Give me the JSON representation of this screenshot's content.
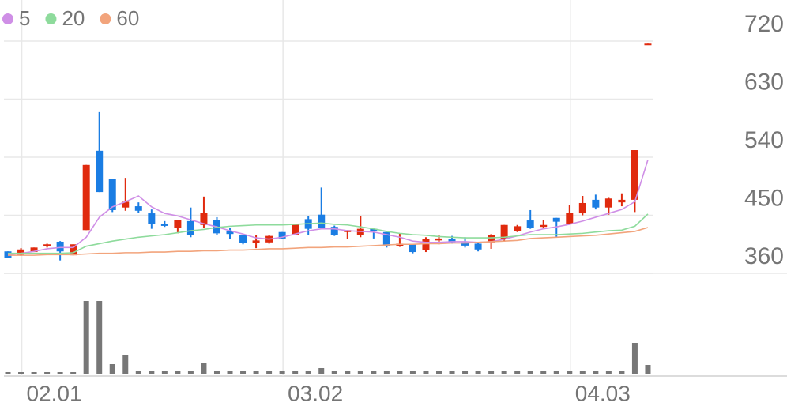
{
  "chart_data": {
    "type": "candlestick",
    "categories": [
      null,
      "02.01",
      null,
      null,
      null,
      null,
      null,
      null,
      null,
      null,
      null,
      null,
      null,
      null,
      null,
      null,
      null,
      null,
      null,
      null,
      null,
      "03.02",
      null,
      null,
      null,
      null,
      null,
      null,
      null,
      null,
      null,
      null,
      null,
      null,
      null,
      null,
      null,
      null,
      null,
      null,
      null,
      null,
      null,
      "04.03",
      null,
      null,
      null,
      null,
      null,
      null
    ],
    "open": [
      394,
      389,
      393,
      402,
      409,
      388,
      427,
      550,
      506,
      462,
      464,
      453,
      436,
      431,
      441,
      435,
      443,
      426,
      420,
      407,
      408,
      424,
      419,
      444,
      451,
      432,
      424,
      419,
      429,
      424,
      402,
      405,
      396,
      411,
      413,
      408,
      406,
      408,
      413,
      425,
      442,
      432,
      446,
      436,
      453,
      474,
      462,
      470,
      474,
      715
    ],
    "high": [
      394,
      399,
      400,
      406,
      410,
      405,
      528,
      610,
      506,
      508,
      470,
      459,
      441,
      443,
      462,
      479,
      447,
      430,
      420,
      419,
      420,
      424,
      437,
      449,
      493,
      434,
      427,
      449,
      429,
      424,
      422,
      405,
      416,
      420,
      418,
      416,
      409,
      421,
      435,
      435,
      458,
      443,
      446,
      466,
      480,
      482,
      477,
      484,
      551,
      716
    ],
    "low": [
      384,
      387,
      393,
      400,
      380,
      388,
      427,
      486,
      455,
      457,
      454,
      429,
      432,
      422,
      416,
      430,
      420,
      413,
      405,
      399,
      406,
      414,
      419,
      420,
      430,
      418,
      413,
      416,
      414,
      400,
      401,
      391,
      393,
      405,
      406,
      400,
      394,
      398,
      409,
      424,
      429,
      429,
      416,
      436,
      450,
      459,
      451,
      464,
      455,
      715
    ],
    "close": [
      384,
      397,
      400,
      405,
      394,
      405,
      528,
      486,
      458,
      471,
      457,
      437,
      434,
      443,
      420,
      454,
      422,
      421,
      407,
      411,
      418,
      414,
      437,
      429,
      431,
      420,
      427,
      429,
      426,
      402,
      406,
      393,
      413,
      414,
      408,
      403,
      397,
      419,
      435,
      433,
      431,
      435,
      440,
      454,
      469,
      462,
      476,
      474,
      551,
      716
    ],
    "volume": [
      3,
      3,
      3,
      3,
      3,
      3,
      93,
      93,
      13,
      25,
      5,
      5,
      5,
      5,
      5,
      15,
      4,
      4,
      4,
      4,
      4,
      4,
      4,
      4,
      8,
      4,
      4,
      5,
      4,
      4,
      4,
      4,
      4,
      4,
      4,
      4,
      4,
      4,
      4,
      4,
      4,
      4,
      4,
      5,
      5,
      5,
      4,
      4,
      40,
      12
    ],
    "volume_lim": [
      0,
      114
    ],
    "up_color": "#e02a0e",
    "down_color": "#1a7de3",
    "volume_color": "#777777",
    "series": [
      {
        "name": "5",
        "color": "#cf8fe6",
        "values": [
          389,
          391,
          394,
          398,
          400,
          400,
          416,
          447,
          463,
          471,
          480,
          463,
          453,
          449,
          443,
          437,
          432,
          426,
          421,
          415,
          413,
          416,
          421,
          426,
          429,
          429,
          426,
          425,
          424,
          420,
          416,
          410,
          408,
          408,
          409,
          409,
          408,
          409,
          413,
          418,
          424,
          429,
          432,
          436,
          441,
          447,
          453,
          459,
          471,
          536
        ]
      },
      {
        "name": "20",
        "color": "#8edb9c",
        "values": [
          391,
          391,
          391,
          391,
          391,
          392,
          402,
          406,
          410,
          413,
          416,
          418,
          420,
          423,
          426,
          428,
          431,
          433,
          434,
          435,
          435,
          435,
          436,
          437,
          438,
          436,
          435,
          432,
          429,
          425,
          422,
          420,
          419,
          417,
          416,
          415,
          415,
          415,
          416,
          418,
          420,
          420,
          420,
          421,
          422,
          424,
          426,
          427,
          433,
          452
        ]
      },
      {
        "name": "60",
        "color": "#f2a47c",
        "values": [
          388,
          388,
          388,
          389,
          389,
          389,
          390,
          391,
          391,
          392,
          392,
          393,
          393,
          394,
          394,
          395,
          395,
          396,
          396,
          397,
          398,
          398,
          399,
          400,
          400,
          401,
          401,
          402,
          403,
          404,
          405,
          405,
          406,
          406,
          407,
          407,
          408,
          409,
          410,
          411,
          414,
          415,
          416,
          417,
          418,
          419,
          421,
          423,
          425,
          431
        ]
      }
    ],
    "ylim": [
      360,
      720
    ],
    "yticks": [
      360,
      450,
      540,
      630,
      720
    ],
    "grid": true
  }
}
